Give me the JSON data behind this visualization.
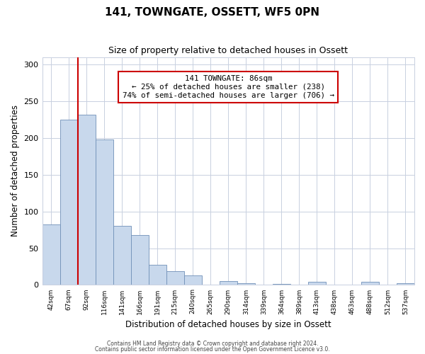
{
  "title": "141, TOWNGATE, OSSETT, WF5 0PN",
  "subtitle": "Size of property relative to detached houses in Ossett",
  "xlabel": "Distribution of detached houses by size in Ossett",
  "ylabel": "Number of detached properties",
  "bar_labels": [
    "42sqm",
    "67sqm",
    "92sqm",
    "116sqm",
    "141sqm",
    "166sqm",
    "191sqm",
    "215sqm",
    "240sqm",
    "265sqm",
    "290sqm",
    "314sqm",
    "339sqm",
    "364sqm",
    "389sqm",
    "413sqm",
    "438sqm",
    "463sqm",
    "488sqm",
    "512sqm",
    "537sqm"
  ],
  "bar_values": [
    82,
    225,
    232,
    198,
    80,
    68,
    27,
    19,
    13,
    0,
    5,
    2,
    0,
    1,
    0,
    4,
    0,
    0,
    4,
    0,
    2
  ],
  "bar_color": "#c8d8ec",
  "bar_edge_color": "#7090b8",
  "vline_color": "#cc0000",
  "vline_pos": 2,
  "ylim": [
    0,
    310
  ],
  "yticks": [
    0,
    50,
    100,
    150,
    200,
    250,
    300
  ],
  "annotation_text": "141 TOWNGATE: 86sqm\n← 25% of detached houses are smaller (238)\n74% of semi-detached houses are larger (706) →",
  "footer_line1": "Contains HM Land Registry data © Crown copyright and database right 2024.",
  "footer_line2": "Contains public sector information licensed under the Open Government Licence v3.0.",
  "background_color": "#ffffff",
  "grid_color": "#c8d0e0"
}
